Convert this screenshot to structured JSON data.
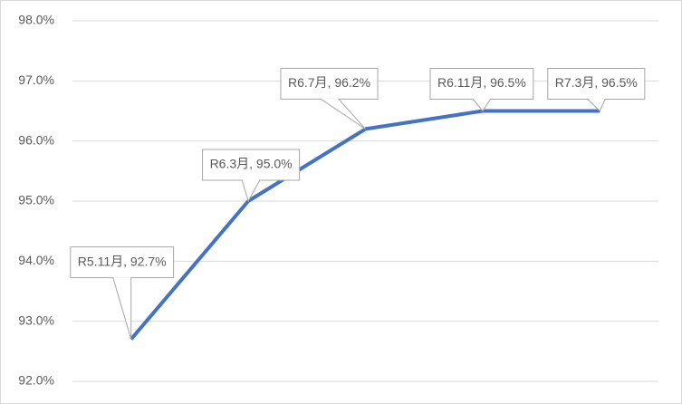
{
  "chart_data": {
    "type": "line",
    "categories": [
      "R5.11月",
      "R6.3月",
      "R6.7月",
      "R6.11月",
      "R7.3月"
    ],
    "values": [
      92.7,
      95.0,
      96.2,
      96.5,
      96.5
    ],
    "value_labels": [
      "R5.11月, 92.7%",
      "R6.3月, 95.0%",
      "R6.7月, 96.2%",
      "R6.11月, 96.5%",
      "R7.3月, 96.5%"
    ],
    "color": "#4472c4",
    "ylim": [
      92,
      98
    ],
    "yticks": [
      {
        "value": 92,
        "label": "92.0%"
      },
      {
        "value": 93,
        "label": "93.0%"
      },
      {
        "value": 94,
        "label": "94.0%"
      },
      {
        "value": 95,
        "label": "95.0%"
      },
      {
        "value": 96,
        "label": "96.0%"
      },
      {
        "value": 97,
        "label": "97.0%"
      },
      {
        "value": 98,
        "label": "98.0%"
      }
    ],
    "grid": true
  }
}
